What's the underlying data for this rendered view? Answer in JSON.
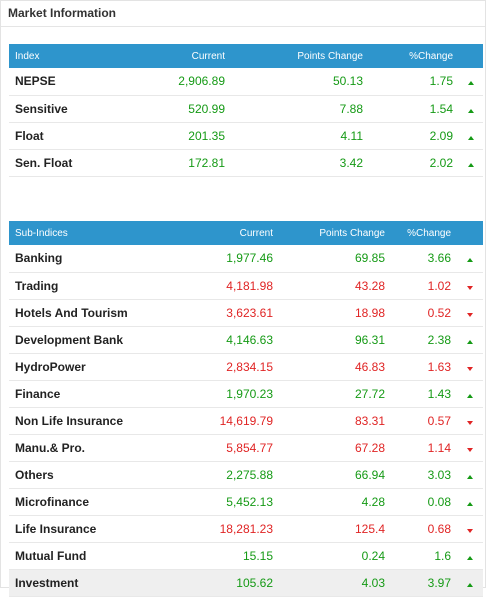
{
  "panel": {
    "title": "Market Information"
  },
  "colors": {
    "header_bg": "#2e95cc",
    "positive": "#159a15",
    "negative": "#e02424"
  },
  "index_table": {
    "headers": [
      "Index",
      "Current",
      "Points Change",
      "%Change"
    ],
    "rows": [
      {
        "name": "NEPSE",
        "current": "2,906.89",
        "points": "50.13",
        "pct": "1.75",
        "dir": "up"
      },
      {
        "name": "Sensitive",
        "current": "520.99",
        "points": "7.88",
        "pct": "1.54",
        "dir": "up"
      },
      {
        "name": "Float",
        "current": "201.35",
        "points": "4.11",
        "pct": "2.09",
        "dir": "up"
      },
      {
        "name": "Sen. Float",
        "current": "172.81",
        "points": "3.42",
        "pct": "2.02",
        "dir": "up"
      }
    ]
  },
  "sub_table": {
    "headers": [
      "Sub-Indices",
      "Current",
      "Points Change",
      "%Change"
    ],
    "rows": [
      {
        "name": "Banking",
        "current": "1,977.46",
        "points": "69.85",
        "pct": "3.66",
        "dir": "up"
      },
      {
        "name": "Trading",
        "current": "4,181.98",
        "points": "43.28",
        "pct": "1.02",
        "dir": "down"
      },
      {
        "name": "Hotels And Tourism",
        "current": "3,623.61",
        "points": "18.98",
        "pct": "0.52",
        "dir": "down"
      },
      {
        "name": "Development Bank",
        "current": "4,146.63",
        "points": "96.31",
        "pct": "2.38",
        "dir": "up"
      },
      {
        "name": "HydroPower",
        "current": "2,834.15",
        "points": "46.83",
        "pct": "1.63",
        "dir": "down"
      },
      {
        "name": "Finance",
        "current": "1,970.23",
        "points": "27.72",
        "pct": "1.43",
        "dir": "up"
      },
      {
        "name": "Non Life Insurance",
        "current": "14,619.79",
        "points": "83.31",
        "pct": "0.57",
        "dir": "down"
      },
      {
        "name": "Manu.& Pro.",
        "current": "5,854.77",
        "points": "67.28",
        "pct": "1.14",
        "dir": "down"
      },
      {
        "name": "Others",
        "current": "2,275.88",
        "points": "66.94",
        "pct": "3.03",
        "dir": "up"
      },
      {
        "name": "Microfinance",
        "current": "5,452.13",
        "points": "4.28",
        "pct": "0.08",
        "dir": "up"
      },
      {
        "name": "Life Insurance",
        "current": "18,281.23",
        "points": "125.4",
        "pct": "0.68",
        "dir": "down"
      },
      {
        "name": "Mutual Fund",
        "current": "15.15",
        "points": "0.24",
        "pct": "1.6",
        "dir": "up"
      },
      {
        "name": "Investment",
        "current": "105.62",
        "points": "4.03",
        "pct": "3.97",
        "dir": "up"
      }
    ]
  }
}
